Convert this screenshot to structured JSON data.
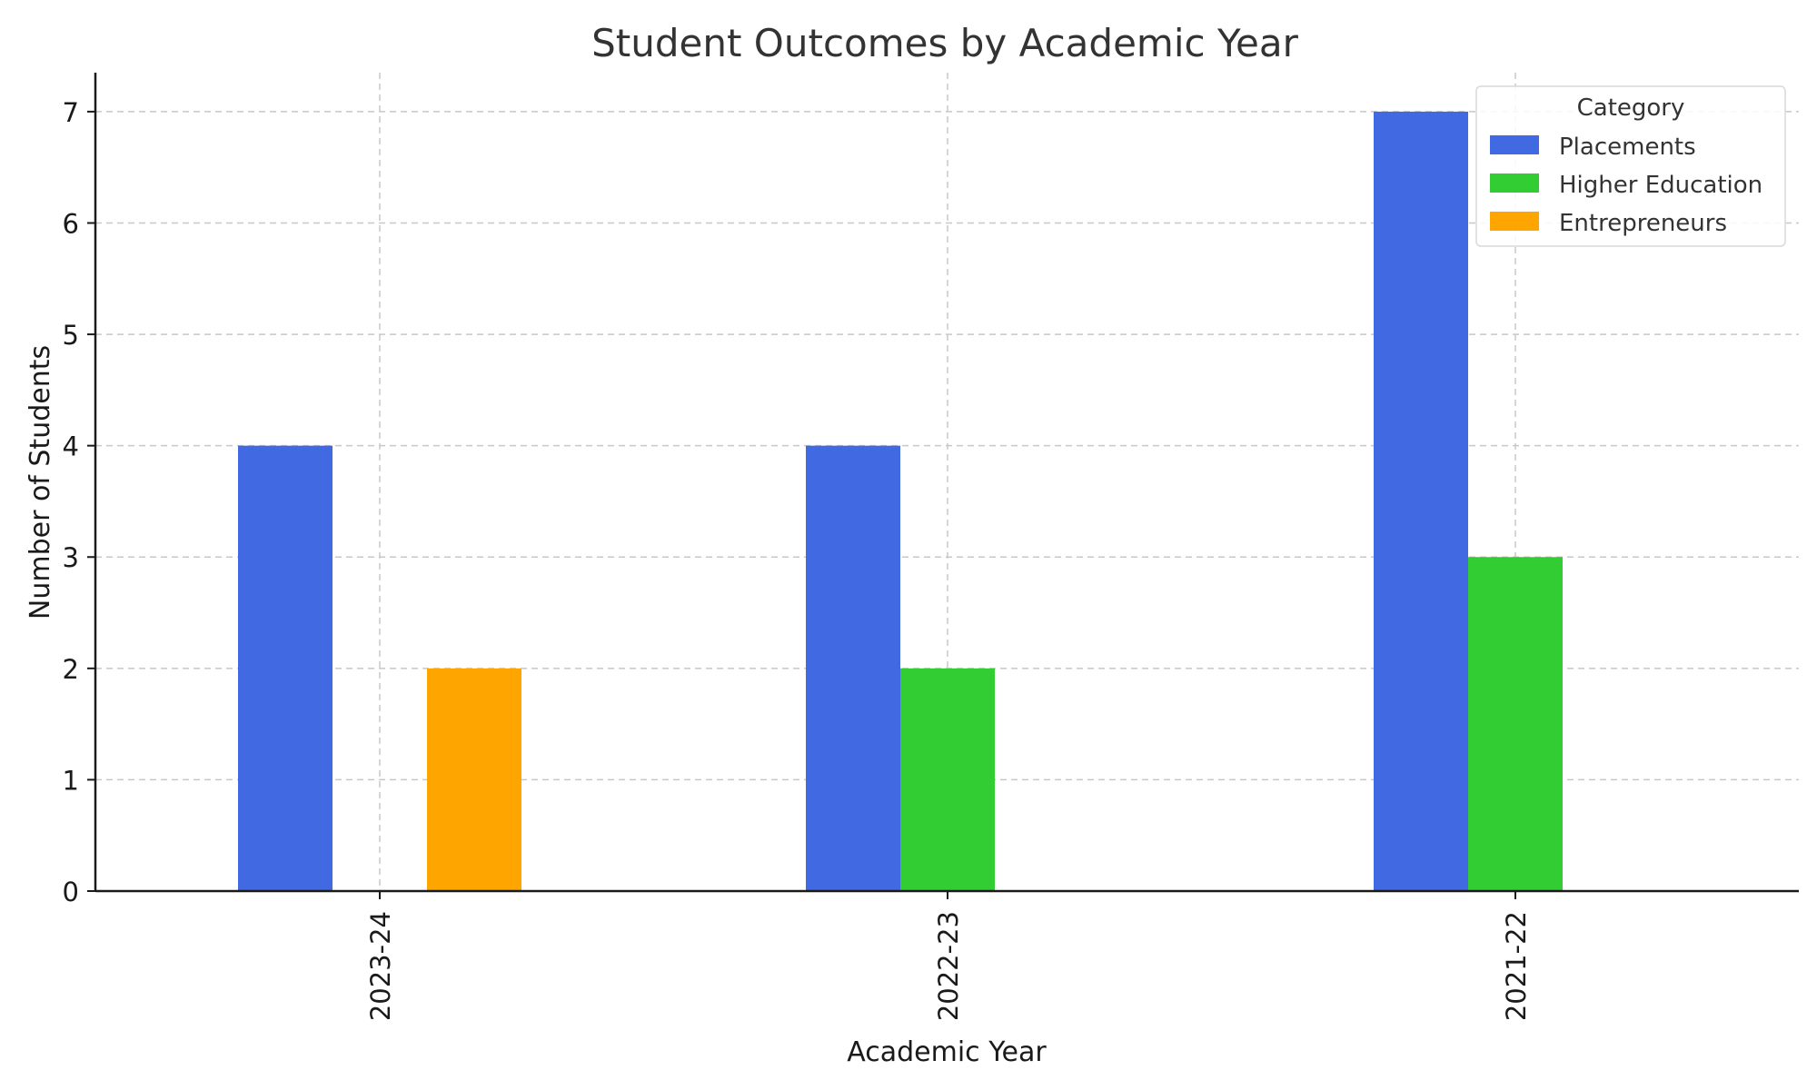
{
  "chart_data": {
    "type": "bar",
    "title": "Student Outcomes by Academic Year",
    "xlabel": "Academic Year",
    "ylabel": "Number of Students",
    "categories": [
      "2023-24",
      "2022-23",
      "2021-22"
    ],
    "series": [
      {
        "name": "Placements",
        "values": [
          4,
          4,
          7
        ],
        "color": "#4169e1"
      },
      {
        "name": "Higher Education",
        "values": [
          0,
          2,
          3
        ],
        "color": "#32cd32"
      },
      {
        "name": "Entrepreneurs",
        "values": [
          2,
          0,
          0
        ],
        "color": "#ffa500"
      }
    ],
    "ylim": [
      0,
      7.35
    ],
    "yticks": [
      0,
      1,
      2,
      3,
      4,
      5,
      6,
      7
    ],
    "grid": true,
    "legend": {
      "title": "Category",
      "placement": "top-right"
    }
  }
}
